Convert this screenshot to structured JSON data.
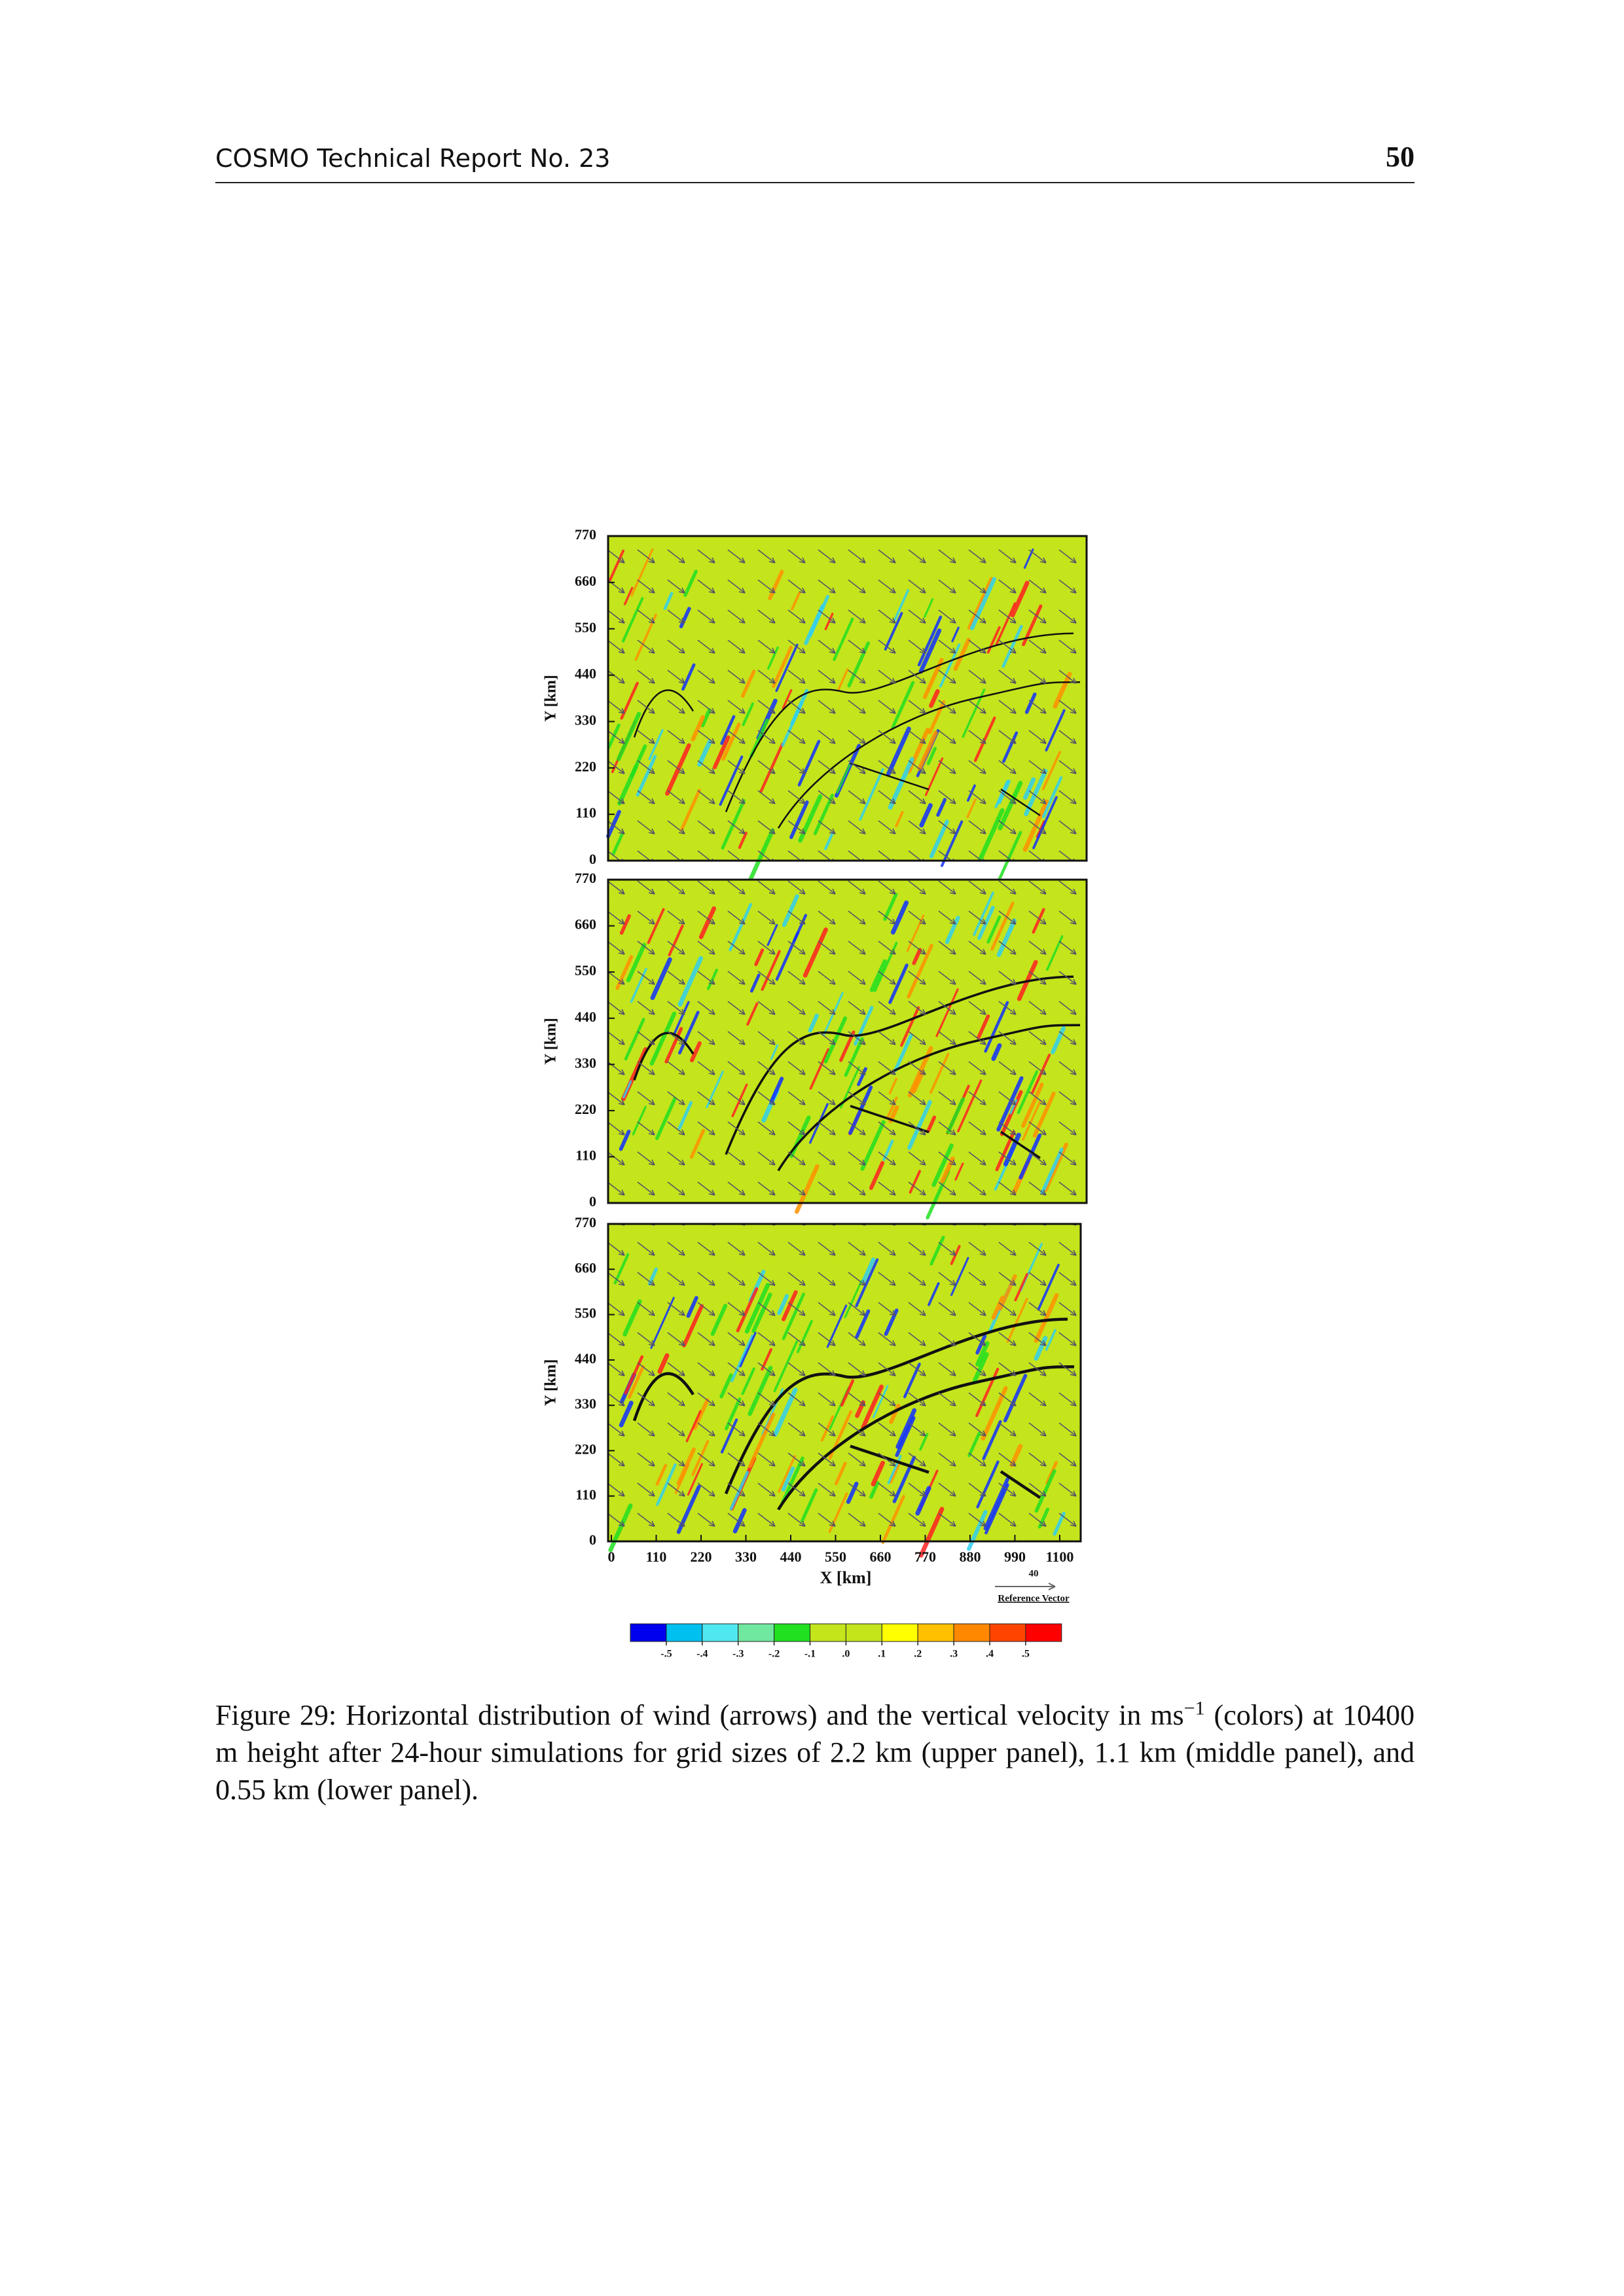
{
  "header": {
    "title": "COSMO Technical Report No. 23",
    "page_number": "50"
  },
  "figure": {
    "panels": [
      {
        "ylabel": "Y [km]",
        "yticks": [
          0,
          110,
          220,
          330,
          440,
          550,
          660,
          770
        ]
      },
      {
        "ylabel": "Y [km]",
        "yticks": [
          0,
          110,
          220,
          330,
          440,
          550,
          660,
          770
        ]
      },
      {
        "ylabel": "Y [km]",
        "yticks": [
          0,
          110,
          220,
          330,
          440,
          550,
          660,
          770
        ]
      }
    ],
    "xlabel": "X [km]",
    "xticks": [
      0,
      110,
      220,
      330,
      440,
      550,
      660,
      770,
      880,
      990,
      1100
    ],
    "reference_vector": {
      "value": 40,
      "label": "Reference Vector"
    },
    "colorbar": {
      "colors": [
        "#0000ee",
        "#00c0f0",
        "#50e8f0",
        "#70e8a0",
        "#20e020",
        "#c4e41c",
        "#c4e41c",
        "#ffff00",
        "#ffc000",
        "#ff8800",
        "#ff4400",
        "#ff0000"
      ],
      "ticks": [
        {
          "value": -0.5,
          "label": "-.5"
        },
        {
          "value": -0.4,
          "label": "-.4"
        },
        {
          "value": -0.3,
          "label": "-.3"
        },
        {
          "value": -0.2,
          "label": "-.2"
        },
        {
          "value": -0.1,
          "label": "-.1"
        },
        {
          "value": 0,
          "label": ".0"
        },
        {
          "value": 0.1,
          "label": ".1"
        },
        {
          "value": 0.2,
          "label": ".2"
        },
        {
          "value": 0.3,
          "label": ".3"
        },
        {
          "value": 0.4,
          "label": ".4"
        },
        {
          "value": 0.5,
          "label": ".5"
        }
      ]
    }
  },
  "caption": {
    "label": "Figure 29:",
    "text_before": "Horizontal distribution of wind (arrows) and the vertical velocity in ms",
    "superscript": "−1",
    "text_after": " (colors) at 10400 m height after 24-hour simulations for grid sizes of 2.2 km (upper panel), 1.1 km (middle panel), and 0.55 km (lower panel)."
  }
}
